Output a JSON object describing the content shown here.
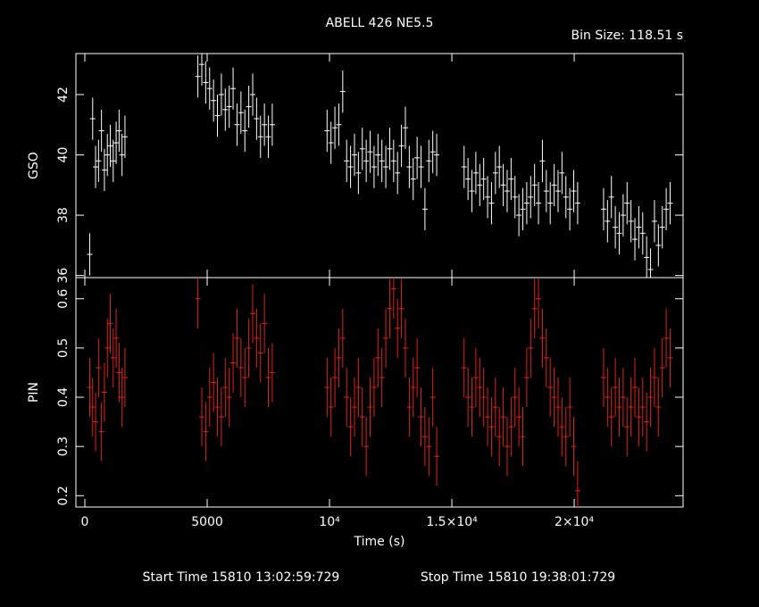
{
  "chart_data": [
    {
      "type": "scatter",
      "title": "ABELL 426 NE5.5",
      "annotation": "Bin Size: 118.51 s",
      "x": [
        200,
        320,
        440,
        560,
        680,
        800,
        920,
        1040,
        1160,
        1280,
        1400,
        1520,
        1640,
        4620,
        4780,
        4940,
        5100,
        5260,
        5420,
        5580,
        5740,
        5900,
        6060,
        6220,
        6380,
        6540,
        6700,
        6860,
        7020,
        7180,
        7340,
        7500,
        7660,
        9900,
        10060,
        10220,
        10380,
        10540,
        10700,
        10860,
        11020,
        11180,
        11340,
        11500,
        11660,
        11820,
        11980,
        12140,
        12300,
        12460,
        12620,
        12780,
        12940,
        13100,
        13260,
        13420,
        13580,
        13740,
        13900,
        14060,
        14220,
        14380,
        15500,
        15660,
        15820,
        15980,
        16140,
        16300,
        16460,
        16620,
        16780,
        16940,
        17100,
        17260,
        17420,
        17580,
        17740,
        17900,
        18060,
        18220,
        18380,
        18540,
        18700,
        18860,
        19020,
        19180,
        19340,
        19500,
        19660,
        19820,
        19980,
        20140,
        21200,
        21360,
        21520,
        21680,
        21840,
        22000,
        22160,
        22320,
        22480,
        22640,
        22800,
        22960,
        23120,
        23280,
        23440,
        23600,
        23760,
        23920
      ],
      "series": [
        {
          "name": "GSO",
          "color": "#ffffff",
          "error": 0.7,
          "values": [
            36.7,
            41.2,
            39.6,
            39.8,
            40.8,
            39.5,
            40.0,
            40.3,
            39.8,
            40.4,
            40.8,
            40.0,
            40.6,
            42.6,
            43.0,
            42.4,
            42.2,
            41.8,
            41.3,
            42.0,
            41.5,
            41.6,
            42.2,
            41.0,
            41.4,
            40.8,
            41.6,
            42.0,
            41.2,
            40.6,
            41.0,
            40.6,
            41.0,
            40.8,
            40.4,
            40.9,
            41.0,
            42.1,
            39.8,
            39.6,
            40.0,
            39.4,
            40.2,
            39.8,
            40.1,
            39.6,
            40.0,
            39.8,
            39.6,
            40.2,
            39.8,
            39.4,
            40.3,
            40.9,
            39.6,
            39.2,
            39.9,
            39.6,
            38.2,
            39.8,
            40.1,
            40.0,
            39.6,
            39.2,
            38.8,
            39.4,
            39.0,
            39.2,
            38.6,
            38.4,
            39.4,
            39.6,
            39.0,
            38.8,
            39.2,
            38.6,
            38.0,
            38.2,
            38.4,
            38.6,
            39.0,
            38.4,
            39.8,
            38.8,
            38.4,
            39.0,
            38.8,
            39.4,
            38.6,
            38.2,
            38.8,
            38.4,
            38.2,
            37.8,
            38.6,
            37.6,
            37.4,
            38.0,
            38.4,
            37.8,
            37.2,
            37.6,
            37.4,
            36.6,
            36.2,
            37.8,
            37.0,
            37.6,
            38.2,
            38.4
          ]
        }
      ],
      "xlim": [
        -365,
        24450
      ],
      "xticks": [
        0,
        5000,
        10000,
        15000,
        20000
      ],
      "ylim": [
        35.93,
        43.36
      ],
      "yticks": [
        36,
        38,
        40,
        42
      ]
    },
    {
      "type": "scatter",
      "xlabel": "Time (s)",
      "x": [
        200,
        320,
        440,
        560,
        680,
        800,
        920,
        1040,
        1160,
        1280,
        1400,
        1520,
        1640,
        4620,
        4780,
        4940,
        5100,
        5260,
        5420,
        5580,
        5740,
        5900,
        6060,
        6220,
        6380,
        6540,
        6700,
        6860,
        7020,
        7180,
        7340,
        7500,
        7660,
        9900,
        10060,
        10220,
        10380,
        10540,
        10700,
        10860,
        11020,
        11180,
        11340,
        11500,
        11660,
        11820,
        11980,
        12140,
        12300,
        12460,
        12620,
        12780,
        12940,
        13100,
        13260,
        13420,
        13580,
        13740,
        13900,
        14060,
        14220,
        14380,
        15500,
        15660,
        15820,
        15980,
        16140,
        16300,
        16460,
        16620,
        16780,
        16940,
        17100,
        17260,
        17420,
        17580,
        17740,
        17900,
        18060,
        18220,
        18380,
        18540,
        18700,
        18860,
        19020,
        19180,
        19340,
        19500,
        19660,
        19820,
        19980,
        20140,
        21200,
        21360,
        21520,
        21680,
        21840,
        22000,
        22160,
        22320,
        22480,
        22640,
        22800,
        22960,
        23120,
        23280,
        23440,
        23600,
        23760,
        23920
      ],
      "series": [
        {
          "name": "PIN",
          "color": "#e0201a",
          "error": 0.06,
          "values": [
            0.42,
            0.38,
            0.35,
            0.46,
            0.33,
            0.41,
            0.5,
            0.55,
            0.48,
            0.52,
            0.45,
            0.4,
            0.44,
            0.6,
            0.36,
            0.33,
            0.4,
            0.43,
            0.38,
            0.36,
            0.42,
            0.4,
            0.47,
            0.52,
            0.46,
            0.44,
            0.5,
            0.57,
            0.52,
            0.49,
            0.55,
            0.44,
            0.45,
            0.42,
            0.38,
            0.44,
            0.48,
            0.52,
            0.4,
            0.34,
            0.38,
            0.42,
            0.36,
            0.3,
            0.38,
            0.42,
            0.48,
            0.44,
            0.52,
            0.58,
            0.62,
            0.54,
            0.58,
            0.5,
            0.38,
            0.42,
            0.46,
            0.36,
            0.32,
            0.3,
            0.4,
            0.28,
            0.46,
            0.4,
            0.38,
            0.44,
            0.42,
            0.4,
            0.36,
            0.34,
            0.38,
            0.32,
            0.36,
            0.3,
            0.34,
            0.4,
            0.36,
            0.32,
            0.44,
            0.5,
            0.58,
            0.6,
            0.52,
            0.48,
            0.42,
            0.4,
            0.38,
            0.34,
            0.32,
            0.38,
            0.3,
            0.21,
            0.44,
            0.4,
            0.36,
            0.42,
            0.38,
            0.4,
            0.34,
            0.38,
            0.42,
            0.36,
            0.38,
            0.35,
            0.4,
            0.44,
            0.38,
            0.46,
            0.52,
            0.48
          ]
        }
      ],
      "xlim": [
        -365,
        24450
      ],
      "xticks": [
        0,
        5000,
        {
          "value": 10000,
          "label": "10⁴"
        },
        {
          "value": 15000,
          "label": "1.5×10⁴"
        },
        {
          "value": 20000,
          "label": "2×10⁴"
        }
      ],
      "ylim": [
        0.177,
        0.643
      ],
      "yticks": [
        0.2,
        0.3,
        0.4,
        0.5,
        0.6
      ]
    }
  ],
  "footer": {
    "start": "Start Time 15810 13:02:59:729",
    "stop": "Stop Time 15810 19:38:01:729"
  }
}
